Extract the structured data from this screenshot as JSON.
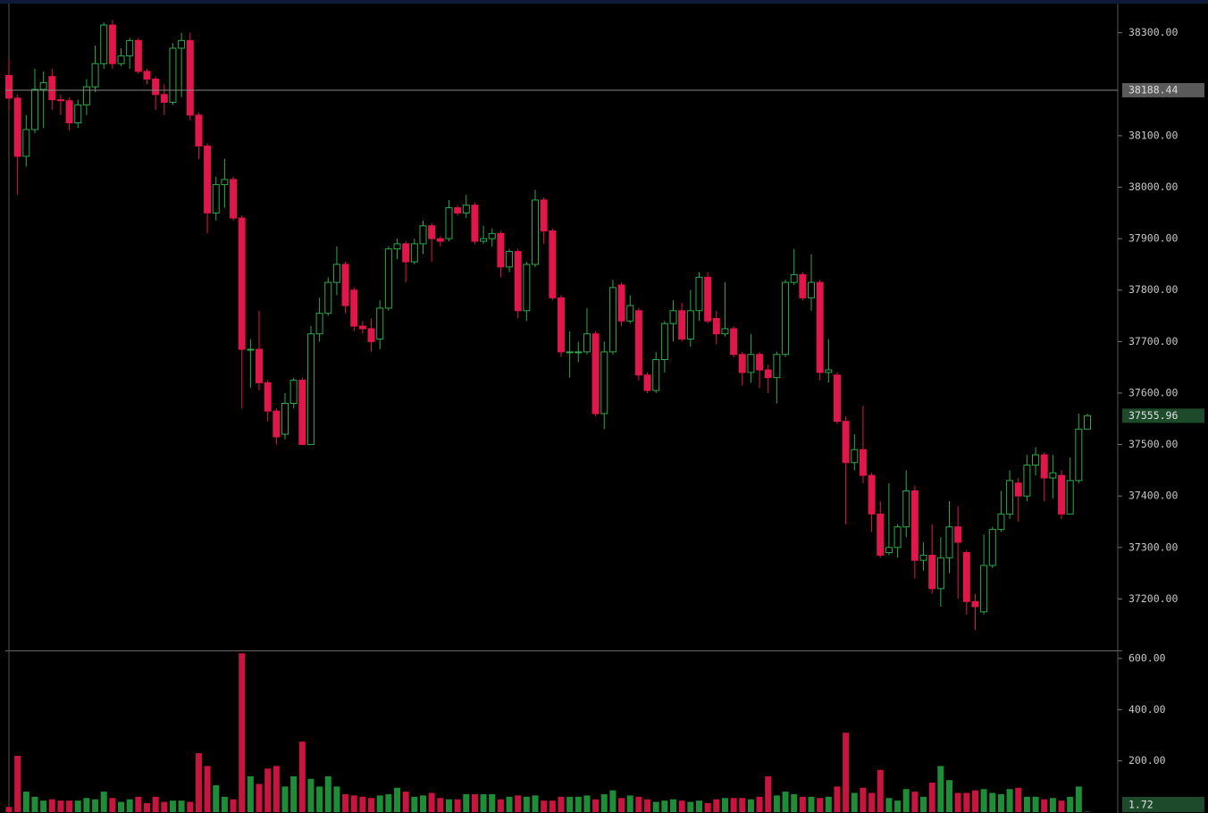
{
  "chart_data": {
    "type": "candlestick",
    "open": [
      38217,
      38173,
      38060,
      38112,
      38190,
      38215,
      38170,
      38168,
      38125,
      38160,
      38195,
      38240,
      38315,
      38240,
      38255,
      38285,
      38225,
      38210,
      38180,
      38165,
      38270,
      38285,
      38140,
      38080,
      37950,
      38005,
      38015,
      37940,
      37685,
      37685,
      37620,
      37565,
      37520,
      37580,
      37625,
      37500,
      37715,
      37755,
      37815,
      37850,
      37800,
      37730,
      37725,
      37705,
      37765,
      37880,
      37890,
      37855,
      37890,
      37925,
      37900,
      37900,
      37960,
      37950,
      37965,
      37895,
      37900,
      37910,
      37845,
      37875,
      37760,
      37850,
      37975,
      37915,
      37785,
      37680,
      37680,
      37680,
      37715,
      37560,
      37680,
      37810,
      37740,
      37760,
      37635,
      37605,
      37665,
      37735,
      37760,
      37705,
      37760,
      37825,
      37745,
      37715,
      37725,
      37675,
      37640,
      37675,
      37645,
      37630,
      37675,
      37815,
      37830,
      37785,
      37815,
      37640,
      37635,
      37545,
      37465,
      37490,
      37440,
      37365,
      37290,
      37300,
      37340,
      37410,
      37275,
      37285,
      37220,
      37280,
      37340,
      37290,
      37195,
      37175,
      37265,
      37335,
      37365,
      37425,
      37400,
      37460,
      37480,
      37435,
      37440,
      37365,
      37430,
      37530
    ],
    "high": [
      38250,
      38180,
      38140,
      38230,
      38225,
      38230,
      38180,
      38175,
      38170,
      38210,
      38275,
      38320,
      38325,
      38270,
      38290,
      38290,
      38230,
      38215,
      38200,
      38280,
      38300,
      38300,
      38145,
      38085,
      38020,
      38055,
      38020,
      37945,
      37705,
      37760,
      37625,
      37570,
      37600,
      37630,
      37630,
      37730,
      37785,
      37825,
      37885,
      37855,
      37805,
      37740,
      37745,
      37780,
      37885,
      37900,
      37895,
      37900,
      37935,
      37930,
      37905,
      37975,
      37965,
      37985,
      37970,
      37925,
      37920,
      37915,
      37880,
      37880,
      37855,
      37995,
      37980,
      37920,
      37790,
      37720,
      37700,
      37765,
      37720,
      37700,
      37820,
      37815,
      37790,
      37765,
      37640,
      37680,
      37740,
      37780,
      37775,
      37800,
      37835,
      37835,
      37760,
      37815,
      37730,
      37680,
      37715,
      37680,
      37655,
      37680,
      37820,
      37880,
      37835,
      37870,
      37820,
      37705,
      37640,
      37555,
      37520,
      37575,
      37445,
      37390,
      37425,
      37345,
      37450,
      37420,
      37310,
      37345,
      37320,
      37390,
      37380,
      37295,
      37210,
      37325,
      37340,
      37410,
      37450,
      37435,
      37480,
      37495,
      37485,
      37480,
      37450,
      37475,
      37560,
      37560
    ],
    "low": [
      38150,
      37985,
      38040,
      38105,
      38115,
      38150,
      38140,
      38110,
      38115,
      38140,
      38185,
      38230,
      38230,
      38235,
      38230,
      38220,
      38200,
      38150,
      38140,
      38160,
      38175,
      38130,
      38055,
      37910,
      37935,
      37960,
      37935,
      37570,
      37610,
      37605,
      37545,
      37500,
      37510,
      37570,
      37500,
      37500,
      37700,
      37750,
      37790,
      37755,
      37720,
      37715,
      37680,
      37685,
      37760,
      37860,
      37815,
      37850,
      37870,
      37855,
      37885,
      37895,
      37945,
      37940,
      37890,
      37890,
      37885,
      37825,
      37835,
      37745,
      37740,
      37845,
      37890,
      37780,
      37670,
      37630,
      37660,
      37675,
      37555,
      37530,
      37675,
      37730,
      37735,
      37625,
      37600,
      37600,
      37640,
      37700,
      37700,
      37690,
      37740,
      37735,
      37695,
      37710,
      37670,
      37615,
      37620,
      37610,
      37600,
      37580,
      37670,
      37810,
      37780,
      37760,
      37625,
      37620,
      37540,
      37345,
      37450,
      37425,
      37330,
      37280,
      37285,
      37280,
      37320,
      37240,
      37255,
      37210,
      37185,
      37250,
      37200,
      37170,
      37140,
      37170,
      37260,
      37330,
      37355,
      37350,
      37390,
      37440,
      37390,
      37395,
      37355,
      37365,
      37425,
      37530
    ],
    "close": [
      38173,
      38060,
      38112,
      38190,
      38203,
      38170,
      38168,
      38125,
      38160,
      38195,
      38240,
      38315,
      38240,
      38255,
      38285,
      38225,
      38210,
      38180,
      38165,
      38270,
      38285,
      38140,
      38080,
      37950,
      38005,
      38015,
      37940,
      37685,
      37685,
      37620,
      37565,
      37515,
      37580,
      37625,
      37500,
      37715,
      37755,
      37815,
      37850,
      37770,
      37730,
      37725,
      37700,
      37765,
      37880,
      37890,
      37855,
      37890,
      37925,
      37900,
      37895,
      37960,
      37950,
      37965,
      37895,
      37900,
      37910,
      37845,
      37875,
      37760,
      37850,
      37975,
      37915,
      37785,
      37680,
      37680,
      37680,
      37715,
      37560,
      37680,
      37805,
      37740,
      37770,
      37635,
      37605,
      37665,
      37735,
      37760,
      37705,
      37760,
      37825,
      37740,
      37715,
      37725,
      37675,
      37640,
      37675,
      37645,
      37630,
      37675,
      37815,
      37830,
      37785,
      37815,
      37640,
      37645,
      37545,
      37465,
      37490,
      37440,
      37365,
      37285,
      37300,
      37340,
      37410,
      37275,
      37285,
      37220,
      37280,
      37340,
      37310,
      37195,
      37185,
      37265,
      37335,
      37365,
      37430,
      37400,
      37460,
      37480,
      37435,
      37445,
      37365,
      37430,
      37530,
      37555.96
    ],
    "volume": [
      20,
      220,
      80,
      60,
      45,
      50,
      45,
      45,
      45,
      55,
      50,
      80,
      55,
      40,
      50,
      60,
      35,
      60,
      40,
      45,
      45,
      40,
      230,
      180,
      105,
      60,
      50,
      620,
      140,
      110,
      170,
      180,
      100,
      140,
      275,
      130,
      100,
      140,
      100,
      70,
      65,
      60,
      55,
      65,
      70,
      95,
      80,
      60,
      65,
      75,
      55,
      50,
      50,
      70,
      70,
      70,
      70,
      50,
      60,
      65,
      60,
      65,
      45,
      45,
      60,
      60,
      60,
      65,
      50,
      70,
      85,
      55,
      65,
      60,
      50,
      40,
      45,
      50,
      45,
      40,
      45,
      35,
      50,
      55,
      55,
      55,
      50,
      60,
      140,
      65,
      80,
      70,
      60,
      60,
      55,
      60,
      100,
      310,
      75,
      95,
      75,
      165,
      55,
      45,
      90,
      80,
      60,
      115,
      180,
      125,
      75,
      75,
      85,
      90,
      75,
      70,
      90,
      95,
      60,
      60,
      50,
      55,
      45,
      60,
      100,
      1.72
    ],
    "ylim": [
      37100,
      38355
    ],
    "yticks": [
      {
        "value": 37200,
        "label": "37200.00"
      },
      {
        "value": 37300,
        "label": "37300.00"
      },
      {
        "value": 37400,
        "label": "37400.00"
      },
      {
        "value": 37500,
        "label": "37500.00"
      },
      {
        "value": 37600,
        "label": "37600.00"
      },
      {
        "value": 37700,
        "label": "37700.00"
      },
      {
        "value": 37800,
        "label": "37800.00"
      },
      {
        "value": 37900,
        "label": "37900.00"
      },
      {
        "value": 38000,
        "label": "38000.00"
      },
      {
        "value": 38100,
        "label": "38100.00"
      },
      {
        "value": 38300,
        "label": "38300.00"
      }
    ],
    "volume_ylim": [
      0,
      628
    ],
    "volume_yticks": [
      {
        "value": 200,
        "label": "200.00"
      },
      {
        "value": 400,
        "label": "400.00"
      },
      {
        "value": 600,
        "label": "600.00"
      }
    ],
    "crosshair_y": 38188.44,
    "colors": {
      "up": "#2ea84a",
      "down": "#e0174a",
      "up_volume": "#1f8c38",
      "down_volume": "#c8153f"
    }
  }
}
